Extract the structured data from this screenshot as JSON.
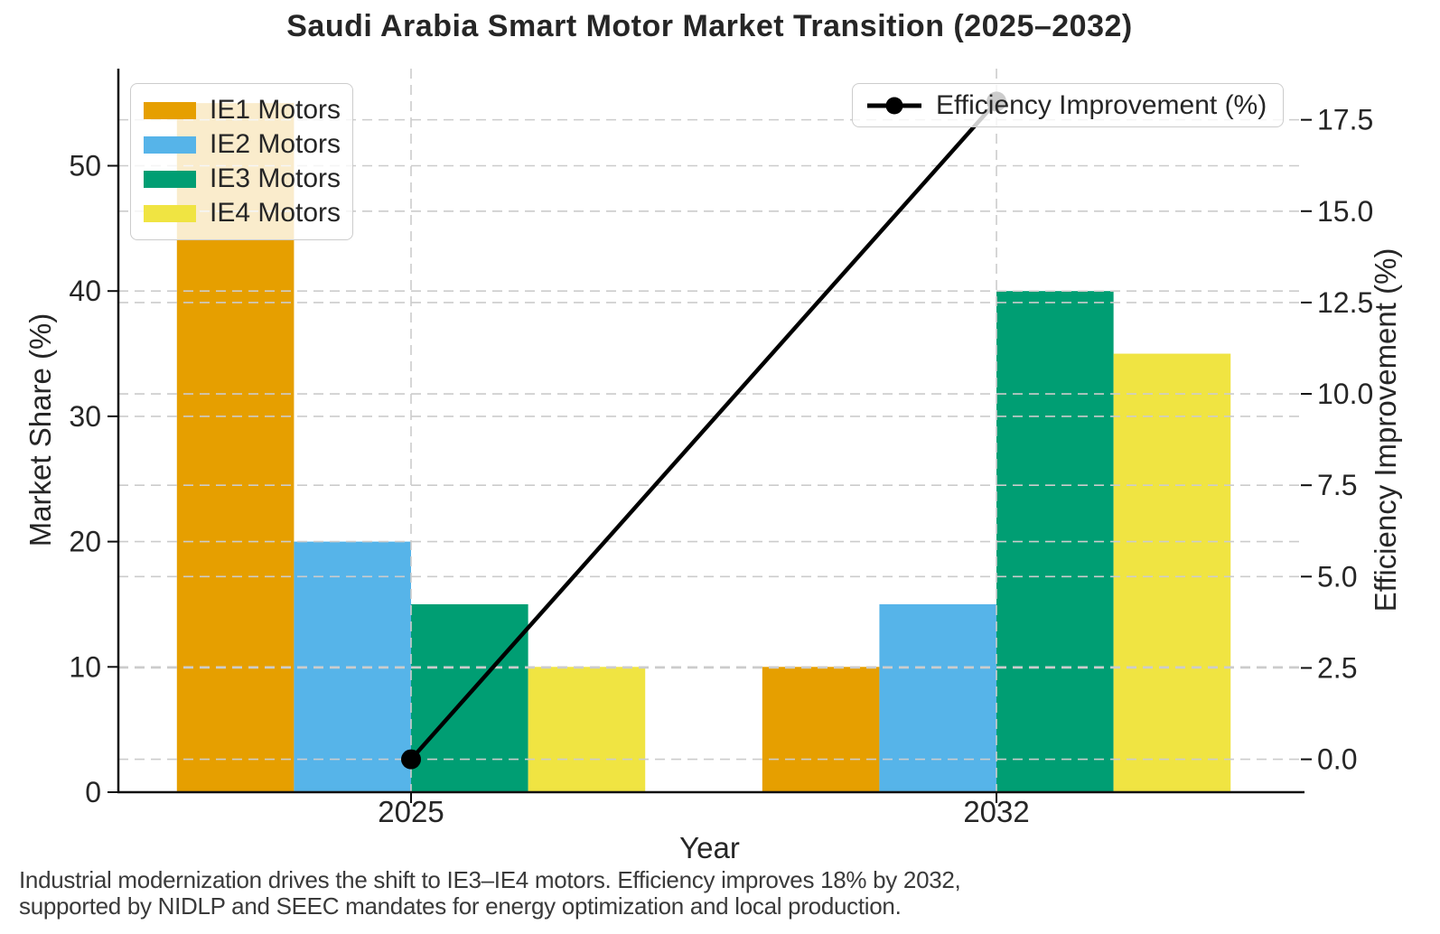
{
  "title": "Saudi Arabia Smart Motor Market Transition (2025–2032)",
  "caption": {
    "line1": "Industrial modernization drives the shift to IE3–IE4 motors. Efficiency improves 18% by 2032,",
    "line2": "supported by NIDLP and SEEC mandates for energy optimization and local production."
  },
  "chart_data": {
    "type": "bar",
    "categories": [
      "2025",
      "2032"
    ],
    "series": [
      {
        "name": "IE1 Motors",
        "values": [
          55,
          10
        ],
        "color": "#E69F00"
      },
      {
        "name": "IE2 Motors",
        "values": [
          20,
          15
        ],
        "color": "#56B4E9"
      },
      {
        "name": "IE3 Motors",
        "values": [
          15,
          40
        ],
        "color": "#009E73"
      },
      {
        "name": "IE4 Motors",
        "values": [
          10,
          35
        ],
        "color": "#F0E442"
      }
    ],
    "line_series": {
      "name": "Efficiency Improvement (%)",
      "values": [
        0,
        18
      ],
      "color": "#000000"
    },
    "xlabel": "Year",
    "ylabel_left": "Market Share (%)",
    "ylabel_right": "Efficiency Improvement (%)",
    "yticks_left": [
      "0",
      "10",
      "20",
      "30",
      "40",
      "50"
    ],
    "yticks_right": [
      "0.0",
      "2.5",
      "5.0",
      "7.5",
      "10.0",
      "12.5",
      "15.0",
      "17.5"
    ],
    "ylim_left": [
      0,
      57.75
    ],
    "ylim_right": [
      -0.9,
      18.9
    ],
    "xlim": [
      -0.5,
      1.52
    ],
    "grid": "dashed, both axes, light gray",
    "legend_positions": [
      "upper left (bars)",
      "upper right (line)"
    ],
    "grid_color": "#cccccc",
    "axis_color": "#0f0f0f"
  }
}
